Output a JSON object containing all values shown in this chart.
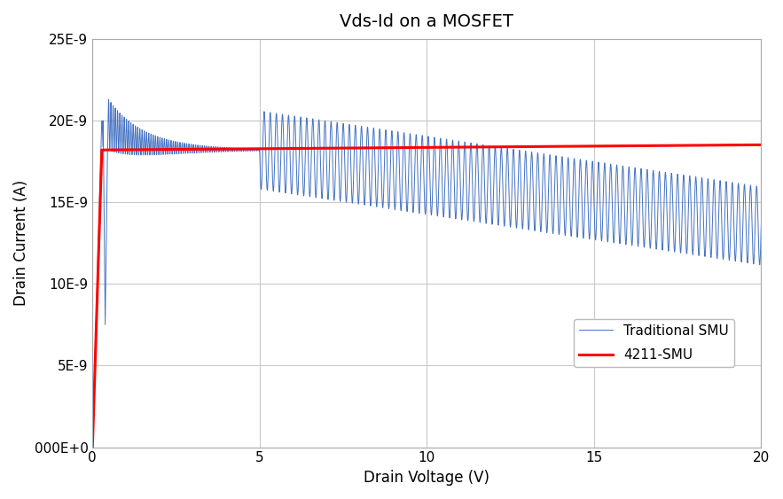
{
  "title": "Vds-Id on a MOSFET",
  "xlabel": "Drain Voltage (V)",
  "ylabel": "Drain Current (A)",
  "xlim": [
    0,
    20
  ],
  "ylim": [
    0,
    2.5e-08
  ],
  "yticks": [
    0,
    5e-09,
    1e-08,
    1.5e-08,
    2e-08,
    2.5e-08
  ],
  "ytick_labels": [
    "000E+0",
    "5E-9",
    "10E-9",
    "15E-9",
    "20E-9",
    "25E-9"
  ],
  "xticks": [
    0,
    5,
    10,
    15,
    20
  ],
  "blue_color": "#4472C4",
  "red_color": "#FF0000",
  "bg_color": "#FFFFFF",
  "grid_color": "#C8C8C8",
  "legend_labels": [
    "Traditional SMU",
    "4211-SMU"
  ],
  "steady_current": 1.82e-08,
  "title_fontsize": 14,
  "axis_label_fontsize": 12,
  "tick_fontsize": 11
}
